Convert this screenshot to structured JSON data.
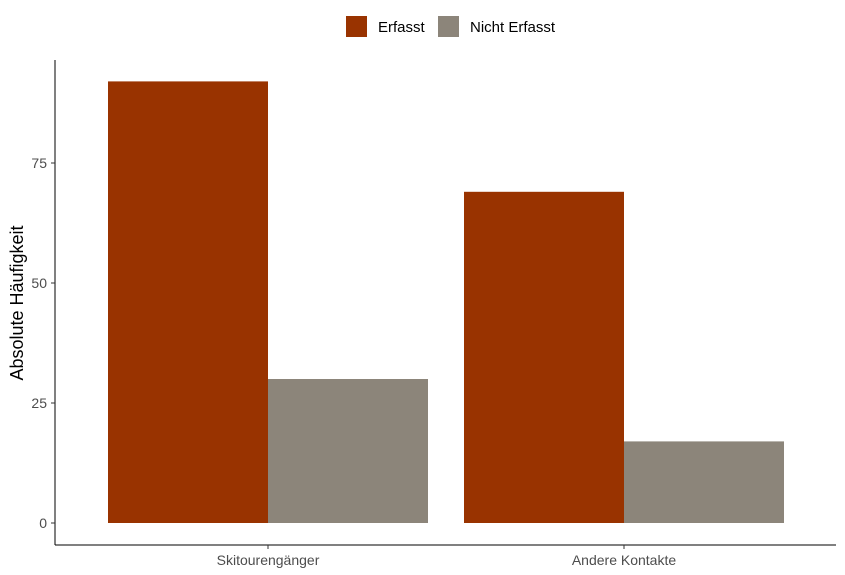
{
  "chart_data": {
    "type": "bar",
    "categories": [
      "Skitourengänger",
      "Andere Kontakte"
    ],
    "series": [
      {
        "name": "Erfasst",
        "values": [
          92,
          69
        ],
        "color": "#993300"
      },
      {
        "name": "Nicht Erfasst",
        "values": [
          30,
          17
        ],
        "color": "#8c857a"
      }
    ],
    "title": "",
    "xlabel": "",
    "ylabel": "Absolute Häufigkeit",
    "ylim": [
      0,
      95.5
    ],
    "yticks": [
      0,
      25,
      50,
      75
    ],
    "legend_position": "top",
    "grid": false
  }
}
